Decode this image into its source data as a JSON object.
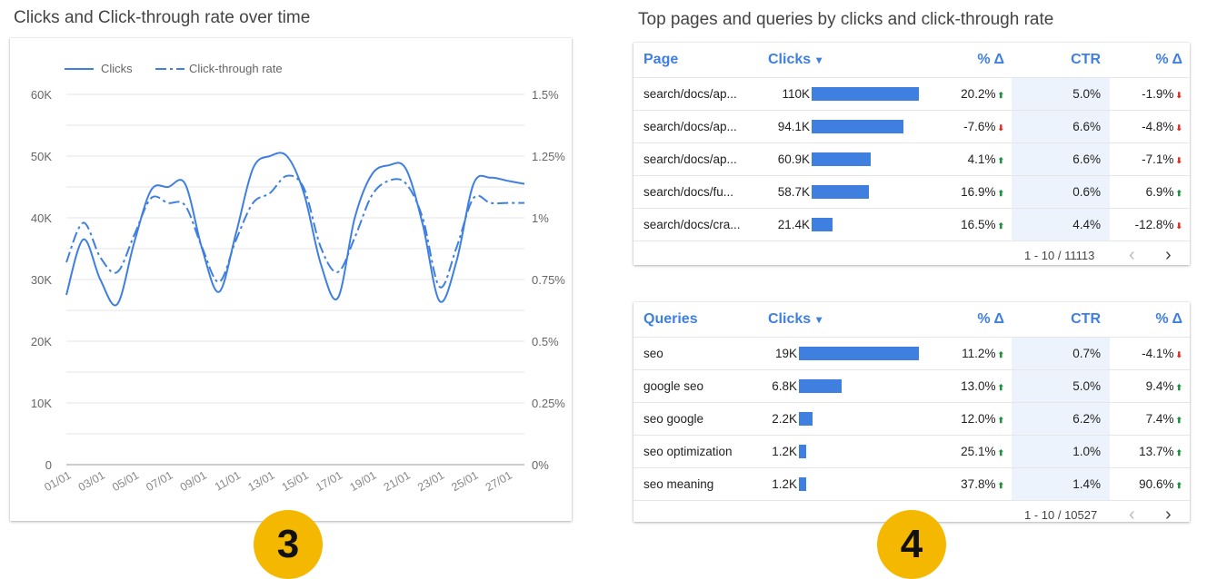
{
  "left": {
    "title": "Clicks and Click-through rate over time"
  },
  "right": {
    "title": "Top pages and queries by clicks and click-through rate"
  },
  "badges": {
    "left": "3",
    "right": "4"
  },
  "colors": {
    "accent": "#3f7fe0",
    "up": "#1e8e3e",
    "down": "#d93025",
    "badge": "#f5b800"
  },
  "chart_data": {
    "type": "line",
    "title": "Clicks and Click-through rate over time",
    "legend": [
      "Clicks",
      "Click-through rate"
    ],
    "legend_position": "top-left",
    "x": [
      "01/01",
      "02/01",
      "03/01",
      "04/01",
      "05/01",
      "06/01",
      "07/01",
      "08/01",
      "09/01",
      "10/01",
      "11/01",
      "12/01",
      "13/01",
      "14/01",
      "15/01",
      "16/01",
      "17/01",
      "18/01",
      "19/01",
      "20/01",
      "21/01",
      "22/01",
      "23/01",
      "24/01",
      "25/01",
      "26/01",
      "27/01",
      "28/01"
    ],
    "x_tick_labels": [
      "01/01",
      "03/01",
      "05/01",
      "07/01",
      "09/01",
      "11/01",
      "13/01",
      "15/01",
      "17/01",
      "19/01",
      "21/01",
      "23/01",
      "25/01",
      "27/01"
    ],
    "y_left": {
      "ticks": [
        "0",
        "10K",
        "20K",
        "30K",
        "40K",
        "50K",
        "60K"
      ],
      "range": [
        0,
        60000
      ]
    },
    "y_right": {
      "ticks": [
        "0%",
        "0.25%",
        "0.5%",
        "0.75%",
        "1%",
        "1.25%",
        "1.5%"
      ],
      "range": [
        0,
        1.5
      ]
    },
    "grid": true,
    "series": [
      {
        "name": "Clicks",
        "axis": "left",
        "style": "solid",
        "values": [
          27500,
          36500,
          30000,
          26000,
          36000,
          44500,
          45000,
          45500,
          35000,
          28000,
          37500,
          48000,
          50000,
          50000,
          44000,
          32500,
          27000,
          40000,
          47000,
          48500,
          48000,
          39000,
          26500,
          33000,
          45500,
          46500,
          46000,
          45500
        ]
      },
      {
        "name": "Click-through rate",
        "axis": "right",
        "style": "dash-dot",
        "values": [
          0.82,
          0.98,
          0.84,
          0.78,
          0.93,
          1.08,
          1.06,
          1.05,
          0.88,
          0.74,
          0.91,
          1.06,
          1.1,
          1.17,
          1.12,
          0.88,
          0.78,
          0.92,
          1.09,
          1.15,
          1.14,
          1.0,
          0.72,
          0.88,
          1.08,
          1.06,
          1.06,
          1.06
        ]
      }
    ]
  },
  "pages_table": {
    "headers": {
      "name": "Page",
      "clicks": "Clicks",
      "sort_icon": "▾",
      "delta": "% Δ",
      "ctr": "CTR",
      "delta2": "% Δ"
    },
    "rows": [
      {
        "name": "search/docs/ap...",
        "clicks": "110K",
        "clicks_value": 110000,
        "delta": "20.2%",
        "delta_dir": "up",
        "ctr": "5.0%",
        "delta2": "-1.9%",
        "delta2_dir": "down"
      },
      {
        "name": "search/docs/ap...",
        "clicks": "94.1K",
        "clicks_value": 94100,
        "delta": "-7.6%",
        "delta_dir": "down",
        "ctr": "6.6%",
        "delta2": "-4.8%",
        "delta2_dir": "down"
      },
      {
        "name": "search/docs/ap...",
        "clicks": "60.9K",
        "clicks_value": 60900,
        "delta": "4.1%",
        "delta_dir": "up",
        "ctr": "6.6%",
        "delta2": "-7.1%",
        "delta2_dir": "down"
      },
      {
        "name": "search/docs/fu...",
        "clicks": "58.7K",
        "clicks_value": 58700,
        "delta": "16.9%",
        "delta_dir": "up",
        "ctr": "0.6%",
        "delta2": "6.9%",
        "delta2_dir": "up"
      },
      {
        "name": "search/docs/cra...",
        "clicks": "21.4K",
        "clicks_value": 21400,
        "delta": "16.5%",
        "delta_dir": "up",
        "ctr": "4.4%",
        "delta2": "-12.8%",
        "delta2_dir": "down"
      }
    ],
    "pagination": "1 - 10 / 11113"
  },
  "queries_table": {
    "headers": {
      "name": "Queries",
      "clicks": "Clicks",
      "sort_icon": "▾",
      "delta": "% Δ",
      "ctr": "CTR",
      "delta2": "% Δ"
    },
    "rows": [
      {
        "name": "seo",
        "clicks": "19K",
        "clicks_value": 19000,
        "delta": "11.2%",
        "delta_dir": "up",
        "ctr": "0.7%",
        "delta2": "-4.1%",
        "delta2_dir": "down"
      },
      {
        "name": "google seo",
        "clicks": "6.8K",
        "clicks_value": 6800,
        "delta": "13.0%",
        "delta_dir": "up",
        "ctr": "5.0%",
        "delta2": "9.4%",
        "delta2_dir": "up"
      },
      {
        "name": "seo google",
        "clicks": "2.2K",
        "clicks_value": 2200,
        "delta": "12.0%",
        "delta_dir": "up",
        "ctr": "6.2%",
        "delta2": "7.4%",
        "delta2_dir": "up"
      },
      {
        "name": "seo optimization",
        "clicks": "1.2K",
        "clicks_value": 1200,
        "delta": "25.1%",
        "delta_dir": "up",
        "ctr": "1.0%",
        "delta2": "13.7%",
        "delta2_dir": "up"
      },
      {
        "name": "seo meaning",
        "clicks": "1.2K",
        "clicks_value": 1200,
        "delta": "37.8%",
        "delta_dir": "up",
        "ctr": "1.4%",
        "delta2": "90.6%",
        "delta2_dir": "up"
      }
    ],
    "pagination": "1 - 10 / 10527"
  },
  "icons": {
    "prev": "chevron-left-icon",
    "next": "chevron-right-icon",
    "up": "arrow-up-icon",
    "down": "arrow-down-icon"
  },
  "nav_glyphs": {
    "prev": "‹",
    "next": "›",
    "up": "⬆",
    "down": "⬇"
  }
}
